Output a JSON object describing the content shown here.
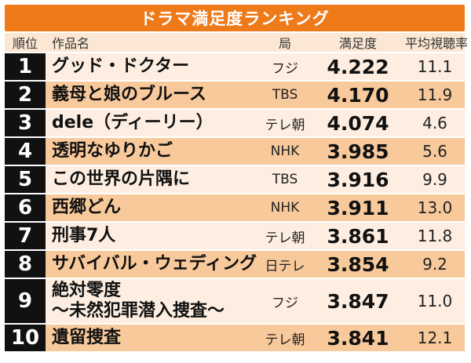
{
  "title": "ドラマ満足度ランキング",
  "colors": {
    "accent": "#ef7a1a",
    "row_light": "#fdeee1",
    "row_dark": "#f8c99b",
    "rank_bg": "#111111"
  },
  "headers": {
    "rank": "順位",
    "title": "作品名",
    "station": "局",
    "score": "満足度",
    "rating": "平均視聴率"
  },
  "rows": [
    {
      "rank": "1",
      "title": [
        "グッド・ドクター"
      ],
      "station": "フジ",
      "score": "4.222",
      "rating": "11.1"
    },
    {
      "rank": "2",
      "title": [
        "義母と娘のブルース"
      ],
      "station": "TBS",
      "score": "4.170",
      "rating": "11.9"
    },
    {
      "rank": "3",
      "title": [
        "dele（ディーリー）"
      ],
      "station": "テレ朝",
      "score": "4.074",
      "rating": "4.6"
    },
    {
      "rank": "4",
      "title": [
        "透明なゆりかご"
      ],
      "station": "NHK",
      "score": "3.985",
      "rating": "5.6"
    },
    {
      "rank": "5",
      "title": [
        "この世界の片隅に"
      ],
      "station": "TBS",
      "score": "3.916",
      "rating": "9.9"
    },
    {
      "rank": "6",
      "title": [
        "西郷どん"
      ],
      "station": "NHK",
      "score": "3.911",
      "rating": "13.0"
    },
    {
      "rank": "7",
      "title": [
        "刑事7人"
      ],
      "station": "テレ朝",
      "score": "3.861",
      "rating": "11.8"
    },
    {
      "rank": "8",
      "title": [
        "サバイバル・ウェディング"
      ],
      "station": "日テレ",
      "score": "3.854",
      "rating": "9.2"
    },
    {
      "rank": "9",
      "title": [
        "絶対零度",
        "～未然犯罪潜入捜査～"
      ],
      "station": "フジ",
      "score": "3.847",
      "rating": "11.0"
    },
    {
      "rank": "10",
      "title": [
        "遺留捜査"
      ],
      "station": "テレ朝",
      "score": "3.841",
      "rating": "12.1"
    }
  ]
}
